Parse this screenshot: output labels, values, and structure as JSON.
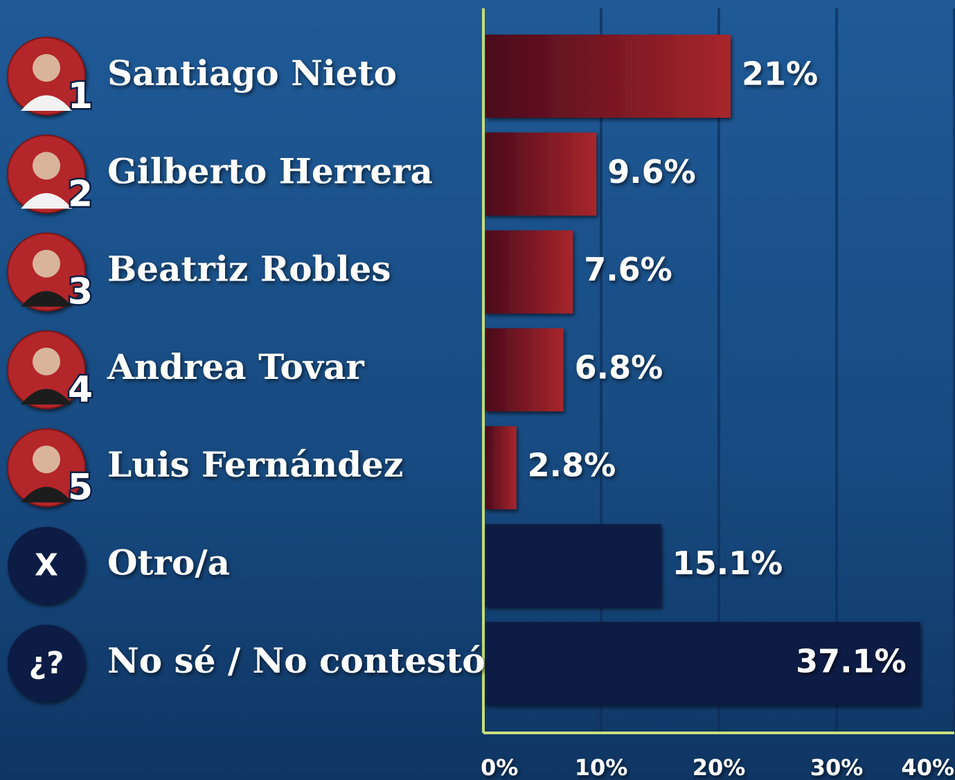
{
  "chart_data": {
    "type": "bar",
    "orientation": "horizontal",
    "categories": [
      "Santiago Nieto",
      "Gilberto Herrera",
      "Beatriz Robles",
      "Andrea Tovar",
      "Luis Fernández",
      "Otro/a",
      "No sé / No contestó"
    ],
    "badges": [
      "1",
      "2",
      "3",
      "4",
      "5",
      "X",
      "¿?"
    ],
    "values": [
      21,
      9.6,
      7.6,
      6.8,
      2.8,
      15.1,
      37.1
    ],
    "value_labels": [
      "21%",
      "9.6%",
      "7.6%",
      "6.8%",
      "2.8%",
      "15.1%",
      "37.1%"
    ],
    "colors": [
      "#9c2128",
      "#9c2128",
      "#9c2128",
      "#9c2128",
      "#9c2128",
      "#0b1f45",
      "#0b1f45"
    ],
    "xlim": [
      0,
      40
    ],
    "xticks": [
      {
        "value": 0,
        "label": "0%"
      },
      {
        "value": 10,
        "label": "10%"
      },
      {
        "value": 20,
        "label": "20%"
      },
      {
        "value": 30,
        "label": "30%"
      },
      {
        "value": 40,
        "label": "40%"
      }
    ],
    "grid": true
  }
}
